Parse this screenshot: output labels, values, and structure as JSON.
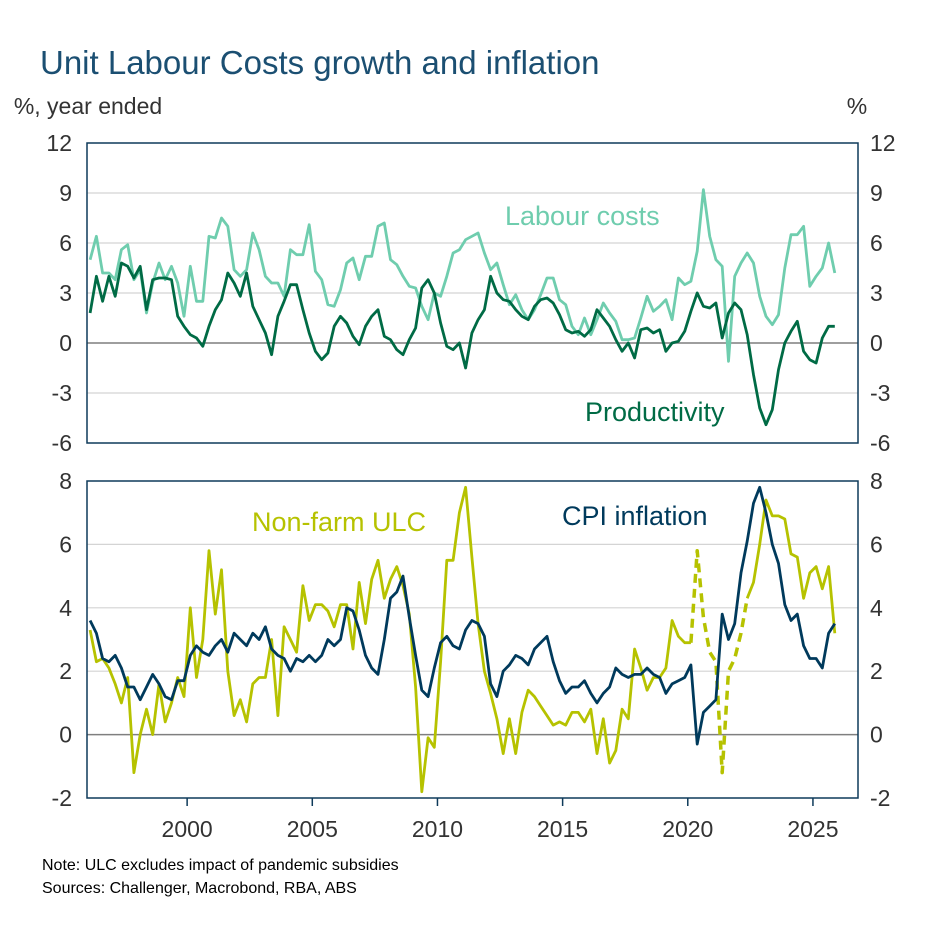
{
  "title": "Unit Labour Costs growth and inflation",
  "notes": [
    "Note: ULC excludes impact of pandemic subsidies",
    "Sources: Challenger, Macrobond, RBA, ABS"
  ],
  "chart_data": [
    {
      "type": "line",
      "panel": "top",
      "ylabel_left": "%, year ended",
      "ylabel_right": "%",
      "ylim": [
        -6,
        12
      ],
      "yticks": [
        "12",
        "9",
        "6",
        "3",
        "0",
        "-3",
        "-6"
      ],
      "xlim": [
        1996,
        2026.8
      ],
      "grid": true,
      "frequency": "quarterly",
      "start": "1996Q1",
      "series": [
        {
          "name": "Labour costs",
          "color": "#6fcdae",
          "label_position": "top-center",
          "values": [
            5.0,
            6.4,
            4.2,
            4.2,
            3.8,
            5.6,
            5.9,
            3.8,
            4.4,
            1.8,
            3.6,
            4.8,
            3.8,
            4.6,
            3.6,
            1.6,
            4.6,
            2.5,
            2.5,
            6.4,
            6.3,
            7.5,
            7.0,
            4.4,
            4.0,
            4.4,
            6.6,
            5.6,
            4.0,
            3.6,
            3.6,
            2.8,
            5.6,
            5.3,
            5.3,
            7.1,
            4.3,
            3.8,
            2.3,
            2.2,
            3.2,
            4.8,
            5.1,
            3.8,
            5.2,
            5.2,
            7.0,
            7.2,
            5.0,
            4.7,
            4.0,
            3.4,
            3.3,
            2.2,
            1.4,
            3.0,
            2.8,
            4.0,
            5.4,
            5.6,
            6.2,
            6.4,
            6.6,
            5.4,
            4.4,
            4.8,
            3.5,
            2.3,
            2.9,
            2.0,
            1.4,
            2.0,
            2.9,
            3.9,
            3.9,
            2.6,
            2.3,
            1.0,
            0.5,
            1.5,
            0.5,
            1.4,
            2.4,
            1.8,
            1.3,
            0.2,
            0.2,
            0.3,
            1.5,
            2.8,
            1.9,
            2.2,
            2.6,
            1.4,
            3.9,
            3.5,
            3.7,
            5.5,
            9.2,
            6.4,
            5.0,
            4.6,
            -1.1,
            4.0,
            4.8,
            5.4,
            4.8,
            2.8,
            1.6,
            1.1,
            1.7,
            4.5,
            6.5,
            6.5,
            7.0,
            3.4,
            4.0,
            4.5,
            6.0,
            4.2
          ]
        },
        {
          "name": "Productivity",
          "color": "#006b45",
          "label_position": "bottom-right",
          "values": [
            1.8,
            4.0,
            2.5,
            4.0,
            2.8,
            4.8,
            4.6,
            3.9,
            4.6,
            2.0,
            3.8,
            3.9,
            3.9,
            3.8,
            1.6,
            1.0,
            0.5,
            0.3,
            -0.2,
            1.0,
            2.0,
            2.6,
            4.2,
            3.6,
            2.8,
            4.2,
            2.2,
            1.4,
            0.6,
            -0.7,
            1.6,
            2.5,
            3.5,
            3.5,
            2.0,
            0.6,
            -0.5,
            -1.0,
            -0.6,
            1.0,
            1.6,
            1.2,
            0.4,
            -0.1,
            1.0,
            1.6,
            2.0,
            0.4,
            0.2,
            -0.4,
            -0.7,
            0.2,
            0.9,
            3.3,
            3.8,
            3.0,
            1.2,
            -0.2,
            -0.4,
            0.0,
            -1.5,
            0.6,
            1.4,
            2.0,
            4.0,
            3.0,
            2.6,
            2.5,
            2.0,
            1.6,
            1.4,
            2.2,
            2.6,
            2.7,
            2.4,
            1.7,
            0.8,
            0.6,
            0.7,
            0.4,
            0.8,
            2.0,
            1.5,
            1.0,
            0.2,
            -0.5,
            0.0,
            -0.9,
            0.8,
            0.9,
            0.6,
            0.8,
            -0.5,
            0.0,
            0.1,
            0.7,
            1.9,
            3.0,
            2.2,
            2.1,
            2.4,
            0.3,
            1.8,
            2.4,
            2.0,
            0.5,
            -1.9,
            -3.9,
            -4.9,
            -4.0,
            -1.6,
            0.0,
            0.7,
            1.3,
            -0.5,
            -1.0,
            -1.2,
            0.3,
            1.0,
            1.0
          ]
        }
      ]
    },
    {
      "type": "line",
      "panel": "bottom",
      "ylim": [
        -2,
        8
      ],
      "yticks": [
        "8",
        "6",
        "4",
        "2",
        "0",
        "-2"
      ],
      "xlim": [
        1996,
        2026.8
      ],
      "xticks": [
        "2000",
        "2005",
        "2010",
        "2015",
        "2020",
        "2025"
      ],
      "grid": true,
      "frequency": "quarterly",
      "start": "1996Q1",
      "series": [
        {
          "name": "Non-farm ULC",
          "color": "#b6c200",
          "label_position": "top-left",
          "values": [
            3.3,
            2.3,
            2.4,
            2.1,
            1.6,
            1.0,
            1.8,
            -1.2,
            0.0,
            0.8,
            0.0,
            1.6,
            0.4,
            1.0,
            1.8,
            1.2,
            4.0,
            1.8,
            3.0,
            5.8,
            3.8,
            5.2,
            2.0,
            0.6,
            1.1,
            0.4,
            1.6,
            1.8,
            1.8,
            3.0,
            0.6,
            3.4,
            3.0,
            2.6,
            4.7,
            3.6,
            4.1,
            4.1,
            3.9,
            3.4,
            4.1,
            4.1,
            2.7,
            4.8,
            3.5,
            4.9,
            5.5,
            4.3,
            4.9,
            5.3,
            4.7,
            3.8,
            1.5,
            -1.8,
            -0.1,
            -0.4,
            2.3,
            5.5,
            5.5,
            7.0,
            7.8,
            5.6,
            3.5,
            2.0,
            1.3,
            0.5,
            -0.6,
            0.5,
            -0.6,
            0.7,
            1.4,
            1.2,
            0.9,
            0.6,
            0.3,
            0.4,
            0.3,
            0.7,
            0.7,
            0.4,
            0.8,
            -0.6,
            0.5,
            -0.9,
            -0.5,
            0.8,
            0.5,
            2.7,
            2.1,
            1.4,
            1.8,
            1.8,
            2.1,
            3.6,
            3.1,
            2.9,
            2.9,
            null,
            null,
            null,
            null,
            null,
            null,
            null,
            null,
            4.3,
            4.8,
            6.0,
            7.4,
            6.9,
            6.9,
            6.8,
            5.7,
            5.6,
            4.3,
            5.1,
            5.3,
            4.6,
            5.3,
            3.2
          ]
        },
        {
          "name": "Non-farm ULC (including pandemic subsidies)",
          "color": "#b6c200",
          "dashed": true,
          "start": "2020Q1",
          "values": [
            2.9,
            5.8,
            3.7,
            2.6,
            2.3,
            -1.2,
            2.0,
            2.4,
            3.2,
            4.3
          ]
        },
        {
          "name": "CPI inflation",
          "color": "#003a5c",
          "label_position": "top-right",
          "values": [
            3.6,
            3.2,
            2.4,
            2.3,
            2.5,
            2.1,
            1.5,
            1.5,
            1.1,
            1.5,
            1.9,
            1.6,
            1.2,
            1.1,
            1.7,
            1.7,
            2.5,
            2.8,
            2.6,
            2.5,
            2.8,
            3.0,
            2.6,
            3.2,
            3.0,
            2.8,
            3.2,
            3.0,
            3.4,
            2.7,
            2.5,
            2.4,
            2.0,
            2.4,
            2.3,
            2.5,
            2.3,
            2.5,
            3.0,
            2.8,
            3.0,
            4.0,
            3.9,
            3.3,
            2.5,
            2.1,
            1.9,
            3.0,
            4.3,
            4.5,
            5.0,
            3.7,
            2.5,
            1.4,
            1.2,
            2.1,
            2.9,
            3.1,
            2.8,
            2.7,
            3.3,
            3.6,
            3.5,
            3.1,
            1.6,
            1.2,
            2.0,
            2.2,
            2.5,
            2.4,
            2.2,
            2.7,
            2.9,
            3.1,
            2.3,
            1.7,
            1.3,
            1.5,
            1.5,
            1.7,
            1.3,
            1.0,
            1.3,
            1.5,
            2.1,
            1.9,
            1.8,
            1.9,
            1.9,
            2.1,
            1.9,
            1.8,
            1.3,
            1.6,
            1.7,
            1.8,
            2.2,
            -0.3,
            0.7,
            0.9,
            1.1,
            3.8,
            3.0,
            3.5,
            5.1,
            6.1,
            7.3,
            7.8,
            7.0,
            6.0,
            5.4,
            4.1,
            3.6,
            3.8,
            2.8,
            2.4,
            2.4,
            2.1,
            3.2,
            3.5
          ]
        }
      ]
    }
  ]
}
